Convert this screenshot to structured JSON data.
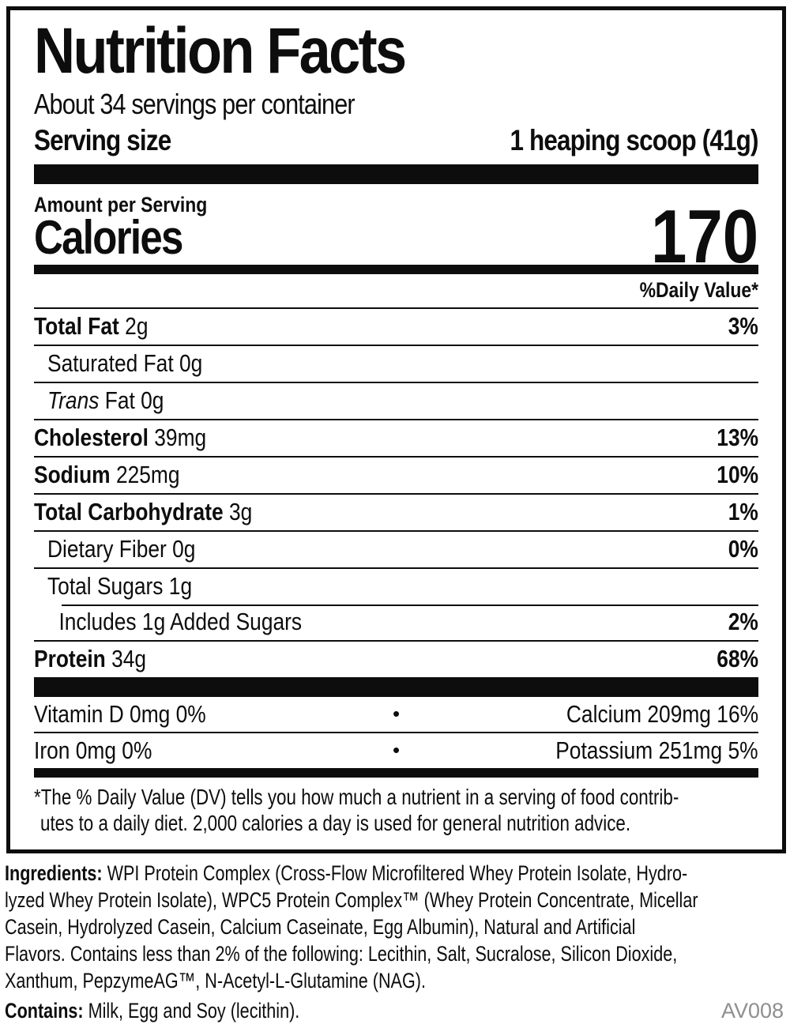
{
  "label": {
    "title": "Nutrition Facts",
    "servings_per_container": "About 34 servings per container",
    "serving_size_label": "Serving size",
    "serving_size_value": "1 heaping scoop (41g)",
    "amount_per_serving": "Amount per Serving",
    "calories_label": "Calories",
    "calories_value": "170",
    "daily_value_header": "%Daily Value*",
    "nutrients": [
      {
        "parts": [
          {
            "t": "Total Fat",
            "b": true
          },
          {
            "t": " 2g"
          }
        ],
        "dv": "3%",
        "indent": 0
      },
      {
        "parts": [
          {
            "t": "Saturated Fat 0g"
          }
        ],
        "dv": "",
        "indent": 1
      },
      {
        "parts": [
          {
            "t": "Trans",
            "i": true
          },
          {
            "t": " Fat 0g"
          }
        ],
        "dv": "",
        "indent": 1
      },
      {
        "parts": [
          {
            "t": "Cholesterol",
            "b": true
          },
          {
            "t": " 39mg"
          }
        ],
        "dv": "13%",
        "indent": 0
      },
      {
        "parts": [
          {
            "t": "Sodium",
            "b": true
          },
          {
            "t": " 225mg"
          }
        ],
        "dv": "10%",
        "indent": 0
      },
      {
        "parts": [
          {
            "t": "Total Carbohydrate",
            "b": true
          },
          {
            "t": " 3g"
          }
        ],
        "dv": "1%",
        "indent": 0
      },
      {
        "parts": [
          {
            "t": "Dietary Fiber 0g"
          }
        ],
        "dv": "0%",
        "indent": 1
      },
      {
        "parts": [
          {
            "t": "Total Sugars 1g"
          }
        ],
        "dv": "",
        "indent": 1
      },
      {
        "parts": [
          {
            "t": "Includes 1g Added Sugars"
          }
        ],
        "dv": "2%",
        "indent": 2,
        "sep_indent": true
      },
      {
        "parts": [
          {
            "t": "Protein",
            "b": true
          },
          {
            "t": " 34g"
          }
        ],
        "dv": "68%",
        "indent": 0
      }
    ],
    "bullet": "•",
    "vitamins": [
      {
        "left": "Vitamin D 0mg 0%",
        "right": "Calcium 209mg 16%"
      },
      {
        "left": "Iron 0mg 0%",
        "right": "Potassium 251mg 5%"
      }
    ],
    "footnote_lines": [
      "*The % Daily Value (DV) tells you how much a nutrient in a serving of food contrib-",
      "utes to a daily diet. 2,000 calories a day is used for general nutrition advice."
    ]
  },
  "ingredients": {
    "lines": [
      {
        "bold": "Ingredients:",
        "text": " WPI Protein Complex (Cross-Flow Microfiltered Whey Protein Isolate, Hydro-"
      },
      {
        "text": "lyzed Whey Protein Isolate), WPC5 Protein Complex™ (Whey Protein Concentrate, Micellar"
      },
      {
        "text": "Casein, Hydrolyzed Casein, Calcium Caseinate, Egg Albumin), Natural and Artificial"
      },
      {
        "text": "Flavors. Contains less than 2% of the following: Lecithin, Salt, Sucralose, Silicon Dioxide,"
      },
      {
        "text": "Xanthum, PepzymeAG™, N-Acetyl-L-Glutamine (NAG)."
      }
    ]
  },
  "contains": {
    "label": "Contains:",
    "text": " Milk, Egg and Soy (lecithin)."
  },
  "code": "AV008",
  "colors": {
    "ink": "#0d0d0d",
    "code_gray": "#8f8f8f"
  }
}
